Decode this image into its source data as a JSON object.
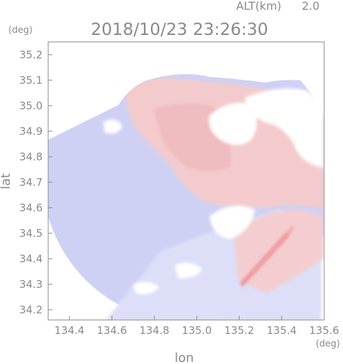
{
  "chart_data": {
    "type": "heatmap",
    "title": "2018/10/23 23:26:30",
    "altitude_label": "ALT(km)",
    "altitude_value": "2.0",
    "xlabel": "lon",
    "ylabel": "lat",
    "x_unit": "(deg)",
    "y_unit": "(deg)",
    "xlim": [
      134.3,
      135.6
    ],
    "ylim": [
      34.16,
      35.25
    ],
    "x_ticks": [
      "134.4",
      "134.6",
      "134.8",
      "135.0",
      "135.2",
      "135.4",
      "135.6"
    ],
    "y_ticks": [
      "35.2",
      "35.1",
      "35.0",
      "34.9",
      "34.8",
      "34.7",
      "34.6",
      "34.5",
      "34.4",
      "34.3",
      "34.2"
    ],
    "grid": false,
    "colors": {
      "positive": "#f2c6c8",
      "strong_positive": "#ef8a90",
      "negative": "#cccdf3",
      "weak_negative": "#dde0f7",
      "axis": "#8a8a8a"
    },
    "radar_coverage": {
      "center": [
        135.02,
        34.68
      ],
      "radius_deg": 0.53
    }
  }
}
